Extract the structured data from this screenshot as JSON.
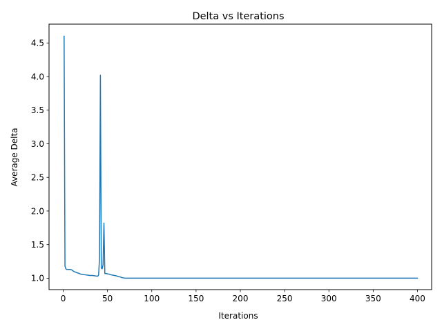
{
  "chart_data": {
    "type": "line",
    "title": "Delta vs Iterations",
    "xlabel": "Iterations",
    "ylabel": "Average Delta",
    "xlim": [
      -16,
      416
    ],
    "ylim": [
      0.83,
      4.78
    ],
    "xticks": [
      0,
      50,
      100,
      150,
      200,
      250,
      300,
      350,
      400
    ],
    "yticks": [
      1.0,
      1.5,
      2.0,
      2.5,
      3.0,
      3.5,
      4.0,
      4.5
    ],
    "ytick_labels": [
      "1.0",
      "1.5",
      "2.0",
      "2.5",
      "3.0",
      "3.5",
      "4.0",
      "4.5"
    ],
    "grid": false,
    "legend": "none",
    "series": [
      {
        "color": "#1f77b4",
        "x": [
          1,
          2,
          3,
          4,
          5,
          6,
          8,
          10,
          12,
          14,
          16,
          18,
          20,
          22,
          25,
          28,
          30,
          33,
          36,
          38,
          39,
          40,
          41,
          42,
          43,
          44,
          45,
          46,
          47,
          48,
          50,
          52,
          54,
          56,
          58,
          60,
          62,
          64,
          66,
          68,
          70,
          75,
          80,
          100,
          150,
          200,
          250,
          300,
          350,
          400
        ],
        "y": [
          4.6,
          1.18,
          1.14,
          1.13,
          1.13,
          1.13,
          1.13,
          1.12,
          1.1,
          1.09,
          1.08,
          1.07,
          1.06,
          1.055,
          1.05,
          1.045,
          1.04,
          1.04,
          1.035,
          1.03,
          1.03,
          1.05,
          1.3,
          4.02,
          1.15,
          1.14,
          1.2,
          1.82,
          1.07,
          1.07,
          1.065,
          1.06,
          1.05,
          1.045,
          1.04,
          1.035,
          1.025,
          1.02,
          1.01,
          1.005,
          1.0,
          1.0,
          1.0,
          1.0,
          1.0,
          1.0,
          1.0,
          1.0,
          1.0,
          1.0
        ]
      }
    ]
  }
}
